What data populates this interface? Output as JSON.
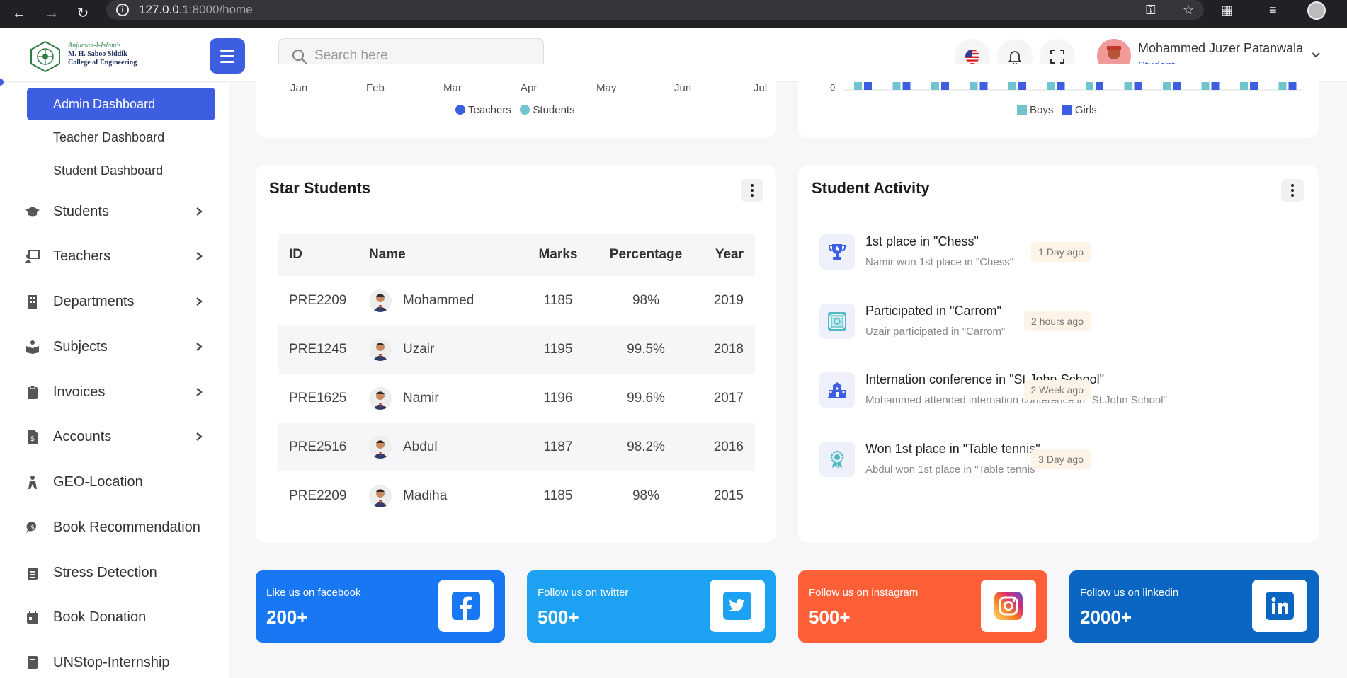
{
  "browser": {
    "url_host": "127.0.0.1",
    "url_rest": ":8000/home"
  },
  "header": {
    "logo_line1": "Anjuman-I-Islam's",
    "logo_line2": "M. H. Saboo Siddik",
    "logo_line3": "College of Engineering",
    "search_placeholder": "Search here",
    "user_name": "Mohammed Juzer Patanwala",
    "user_role": "Student"
  },
  "sidebar": {
    "sub_items": [
      {
        "label": "Admin Dashboard",
        "active": true
      },
      {
        "label": "Teacher Dashboard",
        "active": false
      },
      {
        "label": "Student Dashboard",
        "active": false
      }
    ],
    "items": [
      {
        "label": "Students",
        "icon": "graduation-cap-icon",
        "has_submenu": true
      },
      {
        "label": "Teachers",
        "icon": "chalkboard-teacher-icon",
        "has_submenu": true
      },
      {
        "label": "Departments",
        "icon": "building-icon",
        "has_submenu": true
      },
      {
        "label": "Subjects",
        "icon": "book-reader-icon",
        "has_submenu": true
      },
      {
        "label": "Invoices",
        "icon": "clipboard-icon",
        "has_submenu": true
      },
      {
        "label": "Accounts",
        "icon": "file-invoice-dollar-icon",
        "has_submenu": true
      },
      {
        "label": "GEO-Location",
        "icon": "location-person-icon",
        "has_submenu": false
      },
      {
        "label": "Book Recommendation",
        "icon": "comment-dollar-icon",
        "has_submenu": false
      },
      {
        "label": "Stress Detection",
        "icon": "clipboard-list-icon",
        "has_submenu": false
      },
      {
        "label": "Book Donation",
        "icon": "calendar-icon",
        "has_submenu": false
      },
      {
        "label": "UNStop-Internship",
        "icon": "book-icon",
        "has_submenu": false
      }
    ]
  },
  "charts": {
    "left_months": [
      "Jan",
      "Feb",
      "Mar",
      "Apr",
      "May",
      "Jun",
      "Jul"
    ],
    "left_legend": [
      "Teachers",
      "Students"
    ],
    "right_axis_zero": "0",
    "right_legend": [
      "Boys",
      "Girls"
    ],
    "colors": {
      "teachers": "#3d5ee1",
      "students": "#70c4cf",
      "boys": "#70c4cf",
      "girls": "#3d5ee1"
    }
  },
  "star_students": {
    "title": "Star Students",
    "columns": [
      "ID",
      "Name",
      "Marks",
      "Percentage",
      "Year"
    ],
    "rows": [
      {
        "id": "PRE2209",
        "name": "Mohammed",
        "marks": "1185",
        "percentage": "98%",
        "year": "2019"
      },
      {
        "id": "PRE1245",
        "name": "Uzair",
        "marks": "1195",
        "percentage": "99.5%",
        "year": "2018"
      },
      {
        "id": "PRE1625",
        "name": "Namir",
        "marks": "1196",
        "percentage": "99.6%",
        "year": "2017"
      },
      {
        "id": "PRE2516",
        "name": "Abdul",
        "marks": "1187",
        "percentage": "98.2%",
        "year": "2016"
      },
      {
        "id": "PRE2209",
        "name": "Madiha",
        "marks": "1185",
        "percentage": "98%",
        "year": "2015"
      }
    ]
  },
  "student_activity": {
    "title": "Student Activity",
    "items": [
      {
        "title": "1st place in \"Chess\"",
        "desc": "Namir won 1st place in \"Chess\"",
        "time": "1 Day ago",
        "icon": "trophy-icon"
      },
      {
        "title": "Participated in \"Carrom\"",
        "desc": "Uzair participated in \"Carrom\"",
        "time": "2 hours ago",
        "icon": "carrom-board-icon"
      },
      {
        "title": "Internation conference in \"St.John School\"",
        "desc": "Mohammed attended internation conference in \"St.John School\"",
        "time": "2 Week ago",
        "icon": "school-building-icon"
      },
      {
        "title": "Won 1st place in \"Table tennis\"",
        "desc": "Abdul won 1st place in \"Table tennis\"",
        "time": "3 Day ago",
        "icon": "award-medal-icon"
      }
    ]
  },
  "social": [
    {
      "label": "Like us on facebook",
      "count": "200+",
      "color": "#1877f2",
      "icon": "facebook-icon"
    },
    {
      "label": "Follow us on twitter",
      "count": "500+",
      "color": "#1da1f2",
      "icon": "twitter-icon"
    },
    {
      "label": "Follow us on instagram",
      "count": "500+",
      "color": "#fe5f36",
      "icon": "instagram-icon"
    },
    {
      "label": "Follow us on linkedin",
      "count": "2000+",
      "color": "#0a66c2",
      "icon": "linkedin-icon"
    }
  ]
}
